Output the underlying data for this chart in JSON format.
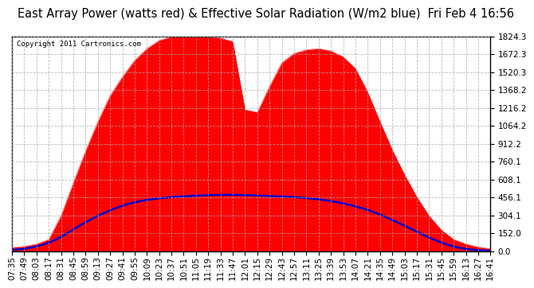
{
  "title": "East Array Power (watts red) & Effective Solar Radiation (W/m2 blue)  Fri Feb 4 16:56",
  "copyright": "Copyright 2011 Cartronics.com",
  "y_ticks": [
    0.0,
    152.0,
    304.1,
    456.1,
    608.1,
    760.1,
    912.2,
    1064.2,
    1216.2,
    1368.2,
    1520.3,
    1672.3,
    1824.3
  ],
  "y_max": 1824.3,
  "x_labels": [
    "07:35",
    "07:49",
    "08:03",
    "08:17",
    "08:31",
    "08:45",
    "08:59",
    "09:13",
    "09:27",
    "09:41",
    "09:55",
    "10:09",
    "10:23",
    "10:37",
    "10:51",
    "11:05",
    "11:19",
    "11:33",
    "11:47",
    "12:01",
    "12:15",
    "12:29",
    "12:43",
    "12:57",
    "13:11",
    "13:25",
    "13:39",
    "13:53",
    "14:07",
    "14:21",
    "14:35",
    "14:49",
    "15:03",
    "15:17",
    "15:31",
    "15:45",
    "15:59",
    "16:13",
    "16:27",
    "16:41"
  ],
  "bg_color": "#ffffff",
  "plot_bg_color": "#ffffff",
  "grid_color": "#aaaaaa",
  "red_color": "#ff0000",
  "blue_color": "#0000cc",
  "title_fontsize": 10.5,
  "tick_fontsize": 7.5,
  "power_data": [
    30,
    40,
    60,
    100,
    300,
    580,
    850,
    1100,
    1320,
    1480,
    1620,
    1720,
    1790,
    1820,
    1824,
    1824,
    1820,
    1810,
    1780,
    1200,
    1180,
    1400,
    1600,
    1680,
    1710,
    1720,
    1700,
    1650,
    1550,
    1350,
    1100,
    860,
    650,
    460,
    300,
    180,
    100,
    60,
    35,
    20
  ],
  "solar_data": [
    10,
    20,
    40,
    70,
    120,
    185,
    245,
    300,
    345,
    385,
    415,
    435,
    448,
    458,
    465,
    470,
    475,
    478,
    478,
    475,
    472,
    468,
    463,
    458,
    450,
    440,
    425,
    405,
    380,
    350,
    310,
    265,
    215,
    165,
    115,
    72,
    38,
    18,
    8,
    3
  ]
}
